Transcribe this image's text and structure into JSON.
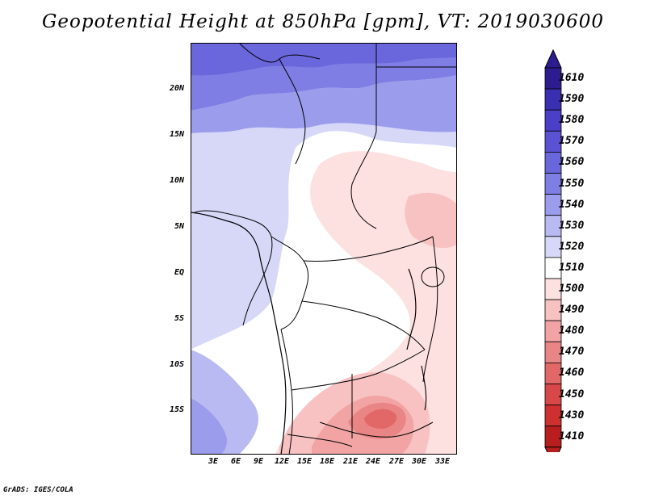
{
  "title": "Geopotential Height at 850hPa [gpm], VT: 2019030600",
  "credit": "GrADS: IGES/COLA",
  "lat_labels": [
    "20N",
    "15N",
    "10N",
    "5N",
    "EQ",
    "5S",
    "10S",
    "15S"
  ],
  "lon_labels": [
    "3E",
    "6E",
    "9E",
    "12E",
    "15E",
    "18E",
    "21E",
    "24E",
    "27E",
    "30E",
    "33E"
  ],
  "colorbar": {
    "levels": [
      "1610",
      "1590",
      "1580",
      "1570",
      "1560",
      "1550",
      "1540",
      "1530",
      "1520",
      "1510",
      "1500",
      "1490",
      "1480",
      "1470",
      "1460",
      "1450",
      "1430",
      "1410"
    ],
    "colors": [
      "#2b1d8f",
      "#3a2fb0",
      "#4a3fc6",
      "#5a52d3",
      "#6a66dc",
      "#7f7ee5",
      "#9b9cec",
      "#b9baf2",
      "#d7d8f8",
      "#ffffff",
      "#fde0e0",
      "#f8c2c2",
      "#f2a4a4",
      "#ea8585",
      "#e26767",
      "#d94848",
      "#ce2f2f",
      "#b81e1e"
    ]
  }
}
